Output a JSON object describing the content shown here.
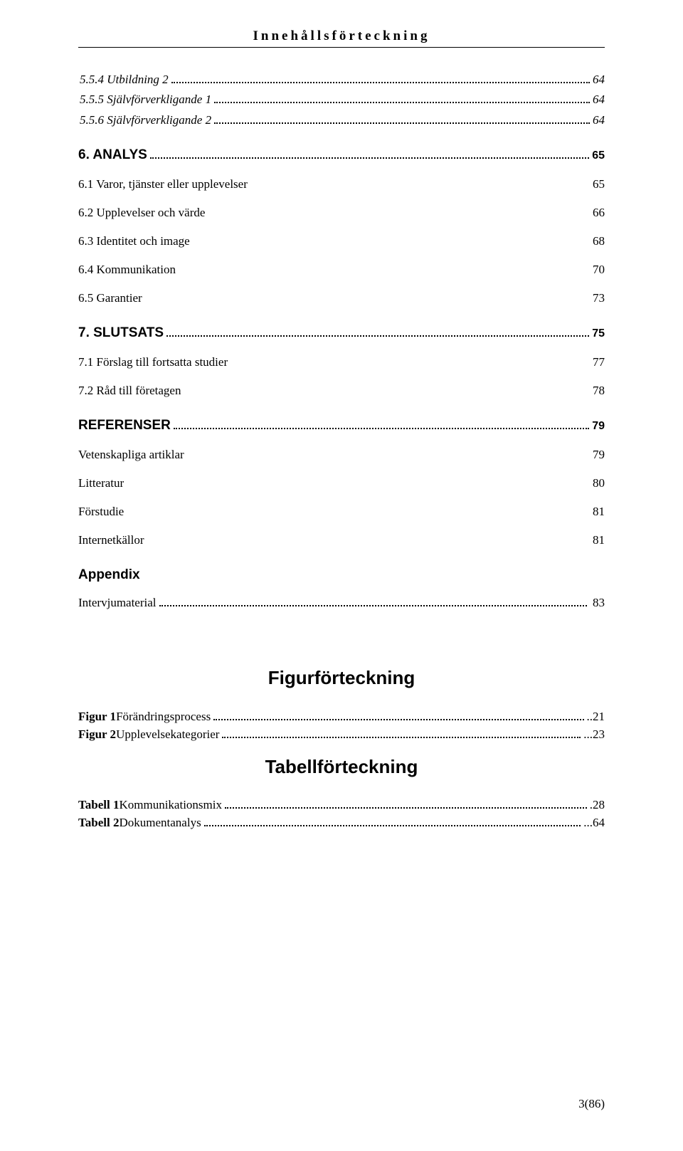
{
  "header": "Innehållsförteckning",
  "toc": {
    "i554": {
      "label": "5.5.4 Utbildning 2",
      "page": "64"
    },
    "i555": {
      "label": "5.5.5 Självförverkligande 1",
      "page": "64"
    },
    "i556": {
      "label": "5.5.6 Självförverkligande 2",
      "page": "64"
    },
    "s6": {
      "label": "6. ANALYS",
      "page": "65"
    },
    "i61": {
      "label": "6.1 Varor, tjänster eller upplevelser",
      "page": "65"
    },
    "i62": {
      "label": "6.2 Upplevelser och värde",
      "page": "66"
    },
    "i63": {
      "label": "6.3 Identitet och image",
      "page": "68"
    },
    "i64": {
      "label": "6.4 Kommunikation",
      "page": "70"
    },
    "i65": {
      "label": "6.5 Garantier",
      "page": "73"
    },
    "s7": {
      "label": "7. SLUTSATS",
      "page": "75"
    },
    "i71": {
      "label": "7.1 Förslag till fortsatta studier",
      "page": "77"
    },
    "i72": {
      "label": "7.2 Råd till företagen",
      "page": "78"
    },
    "ref": {
      "label": "REFERENSER",
      "page": "79"
    },
    "vet": {
      "label": "Vetenskapliga artiklar",
      "page": "79"
    },
    "lit": {
      "label": "Litteratur",
      "page": "80"
    },
    "for": {
      "label": "Förstudie",
      "page": "81"
    },
    "int": {
      "label": "Internetkällor",
      "page": "81"
    },
    "appendix": "Appendix",
    "interv": {
      "label": "Intervjumaterial",
      "page": "83"
    }
  },
  "figHead": "Figurförteckning",
  "fig1": {
    "label": "Figur 1",
    "rest": " Förändringsprocess",
    "page": "21"
  },
  "fig2": {
    "label": "Figur 2",
    "rest": " Upplevelsekategorier",
    "page": "23"
  },
  "tabHead": "Tabellförteckning",
  "tab1": {
    "label": "Tabell 1",
    "rest": " Kommunikationsmix",
    "page": "28"
  },
  "tab2": {
    "label": "Tabell 2",
    "rest": " Dokumentanalys",
    "page": "64"
  },
  "footer": "3(86)"
}
